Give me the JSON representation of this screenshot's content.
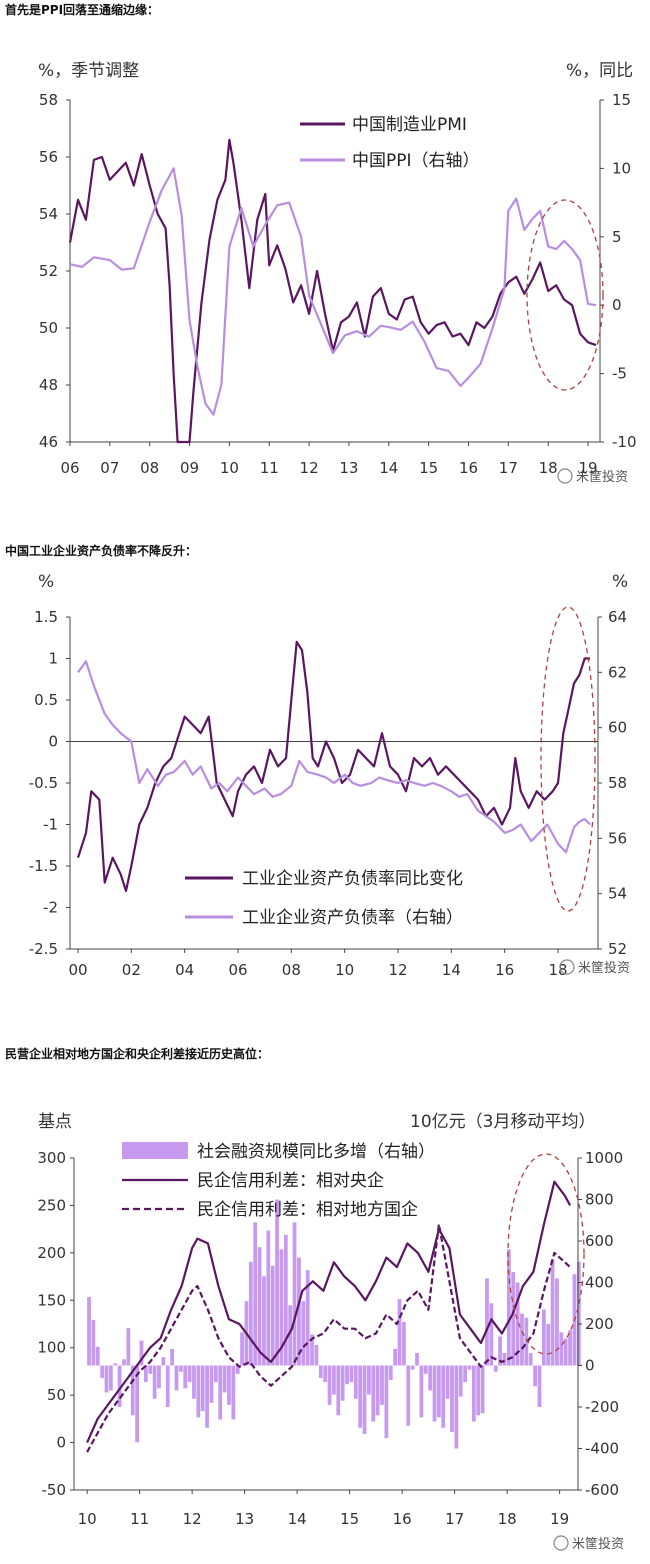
{
  "sections": [
    {
      "heading": "首先是PPI回落至通缩边缘："
    },
    {
      "heading": "中国工业企业资产负债率不降反升："
    },
    {
      "heading": "民营企业相对地方国企和央企利差接近历史高位："
    }
  ],
  "watermark": "米筐投资",
  "colors": {
    "dark": "#5a1660",
    "light": "#b88ee0",
    "bar": "#c79af0",
    "oval": "#b04040"
  },
  "chart_data": [
    {
      "type": "line",
      "left_unit": "%，季节调整",
      "right_unit": "%，同比",
      "x_ticks": [
        "06",
        "07",
        "08",
        "09",
        "10",
        "11",
        "12",
        "13",
        "14",
        "15",
        "16",
        "17",
        "18",
        "19"
      ],
      "y_left": {
        "min": 46,
        "max": 58,
        "ticks": [
          "58",
          "56",
          "54",
          "52",
          "50",
          "48",
          "46"
        ]
      },
      "y_right": {
        "min": -10,
        "max": 15,
        "ticks": [
          "15",
          "10",
          "5",
          "0",
          "-5",
          "-10"
        ]
      },
      "series": [
        {
          "name": "中国制造业PMI",
          "axis": "left",
          "color": "dark",
          "x": [
            2006.0,
            2006.2,
            2006.4,
            2006.6,
            2006.8,
            2007.0,
            2007.2,
            2007.4,
            2007.6,
            2007.8,
            2008.0,
            2008.2,
            2008.4,
            2008.5,
            2008.6,
            2008.7,
            2008.8,
            2008.9,
            2009.0,
            2009.1,
            2009.3,
            2009.5,
            2009.7,
            2009.9,
            2010.0,
            2010.1,
            2010.3,
            2010.5,
            2010.7,
            2010.9,
            2011.0,
            2011.2,
            2011.4,
            2011.6,
            2011.8,
            2012.0,
            2012.2,
            2012.4,
            2012.6,
            2012.8,
            2013.0,
            2013.2,
            2013.4,
            2013.6,
            2013.8,
            2014.0,
            2014.2,
            2014.4,
            2014.6,
            2014.8,
            2015.0,
            2015.2,
            2015.4,
            2015.6,
            2015.8,
            2016.0,
            2016.2,
            2016.4,
            2016.6,
            2016.8,
            2017.0,
            2017.2,
            2017.4,
            2017.6,
            2017.8,
            2018.0,
            2018.2,
            2018.4,
            2018.6,
            2018.8,
            2019.0,
            2019.2
          ],
          "y": [
            53.0,
            54.5,
            53.8,
            55.9,
            56.0,
            55.2,
            55.5,
            55.8,
            55.0,
            56.1,
            55.0,
            54.0,
            53.5,
            51.5,
            48.4,
            46.0,
            45.5,
            44.0,
            43.0,
            47.8,
            50.9,
            53.1,
            54.5,
            55.2,
            56.6,
            55.8,
            53.8,
            51.4,
            53.8,
            54.7,
            52.2,
            52.9,
            52.1,
            50.9,
            51.5,
            50.5,
            52.0,
            50.5,
            49.2,
            50.2,
            50.4,
            50.9,
            49.7,
            51.1,
            51.4,
            50.5,
            50.3,
            51.0,
            51.1,
            50.2,
            49.8,
            50.1,
            50.2,
            49.7,
            49.8,
            49.4,
            50.2,
            50.0,
            50.4,
            51.2,
            51.6,
            51.8,
            51.2,
            51.7,
            52.3,
            51.3,
            51.5,
            51.0,
            50.8,
            49.8,
            49.5,
            49.4
          ]
        },
        {
          "name": "中国PPI（右轴）",
          "axis": "right",
          "color": "light",
          "x": [
            2006.0,
            2006.3,
            2006.6,
            2007.0,
            2007.3,
            2007.6,
            2008.0,
            2008.3,
            2008.6,
            2008.8,
            2009.0,
            2009.2,
            2009.4,
            2009.6,
            2009.8,
            2010.0,
            2010.3,
            2010.6,
            2010.9,
            2011.2,
            2011.5,
            2011.8,
            2012.0,
            2012.3,
            2012.6,
            2012.9,
            2013.2,
            2013.5,
            2013.8,
            2014.0,
            2014.3,
            2014.6,
            2014.9,
            2015.2,
            2015.5,
            2015.8,
            2016.0,
            2016.3,
            2016.6,
            2016.9,
            2017.0,
            2017.2,
            2017.4,
            2017.6,
            2017.8,
            2018.0,
            2018.2,
            2018.4,
            2018.6,
            2018.8,
            2019.0,
            2019.2
          ],
          "y": [
            3.0,
            2.8,
            3.5,
            3.3,
            2.6,
            2.7,
            6.1,
            8.4,
            10.0,
            6.6,
            -1.1,
            -4.5,
            -7.2,
            -8.0,
            -5.8,
            4.3,
            7.1,
            4.3,
            5.9,
            7.3,
            7.5,
            5.0,
            0.7,
            -1.4,
            -3.5,
            -2.2,
            -1.9,
            -2.3,
            -1.5,
            -1.6,
            -1.8,
            -1.2,
            -2.7,
            -4.6,
            -4.8,
            -5.9,
            -5.3,
            -4.3,
            -1.7,
            1.2,
            6.9,
            7.8,
            5.5,
            6.3,
            6.9,
            4.3,
            4.1,
            4.7,
            4.1,
            3.3,
            0.1,
            0.0
          ]
        }
      ]
    },
    {
      "type": "line",
      "left_unit": "%",
      "right_unit": "%",
      "x_ticks": [
        "00",
        "02",
        "04",
        "06",
        "08",
        "10",
        "12",
        "14",
        "16",
        "18"
      ],
      "y_left": {
        "min": -2.5,
        "max": 1.5,
        "ticks": [
          "1.5",
          "1",
          "0.5",
          "0",
          "-0.5",
          "-1",
          "-1.5",
          "-2",
          "-2.5"
        ]
      },
      "y_right": {
        "min": 52,
        "max": 64,
        "ticks": [
          "64",
          "62",
          "60",
          "58",
          "56",
          "54",
          "52"
        ]
      },
      "series": [
        {
          "name": "工业企业资产负债率同比变化",
          "axis": "left",
          "color": "dark",
          "x": [
            2000.0,
            2000.3,
            2000.5,
            2000.8,
            2001.0,
            2001.3,
            2001.6,
            2001.8,
            2002.0,
            2002.3,
            2002.6,
            2002.9,
            2003.2,
            2003.5,
            2003.8,
            2004.0,
            2004.3,
            2004.6,
            2004.9,
            2005.2,
            2005.5,
            2005.8,
            2006.0,
            2006.3,
            2006.6,
            2006.9,
            2007.2,
            2007.5,
            2007.8,
            2008.0,
            2008.2,
            2008.4,
            2008.6,
            2008.8,
            2009.0,
            2009.3,
            2009.6,
            2009.9,
            2010.2,
            2010.5,
            2010.8,
            2011.1,
            2011.4,
            2011.7,
            2012.0,
            2012.3,
            2012.6,
            2012.9,
            2013.2,
            2013.5,
            2013.8,
            2014.1,
            2014.4,
            2014.7,
            2015.0,
            2015.3,
            2015.6,
            2015.9,
            2016.2,
            2016.4,
            2016.6,
            2016.9,
            2017.2,
            2017.5,
            2017.8,
            2018.0,
            2018.2,
            2018.4,
            2018.6,
            2018.8,
            2019.0,
            2019.2
          ],
          "y": [
            -1.4,
            -1.1,
            -0.6,
            -0.7,
            -1.7,
            -1.4,
            -1.6,
            -1.8,
            -1.5,
            -1.0,
            -0.8,
            -0.5,
            -0.3,
            -0.2,
            0.1,
            0.3,
            0.2,
            0.1,
            0.3,
            -0.5,
            -0.7,
            -0.9,
            -0.6,
            -0.4,
            -0.3,
            -0.5,
            -0.1,
            -0.3,
            -0.2,
            0.5,
            1.2,
            1.1,
            0.6,
            -0.2,
            -0.3,
            0.0,
            -0.2,
            -0.5,
            -0.4,
            -0.1,
            -0.2,
            -0.3,
            0.1,
            -0.3,
            -0.4,
            -0.6,
            -0.2,
            -0.3,
            -0.2,
            -0.4,
            -0.3,
            -0.4,
            -0.5,
            -0.6,
            -0.7,
            -0.9,
            -0.8,
            -1.0,
            -0.8,
            -0.2,
            -0.6,
            -0.8,
            -0.6,
            -0.7,
            -0.6,
            -0.5,
            0.1,
            0.4,
            0.7,
            0.8,
            1.0,
            1.0
          ]
        },
        {
          "name": "工业企业资产负债率（右轴）",
          "axis": "right",
          "color": "light",
          "x": [
            2000.0,
            2000.3,
            2000.6,
            2001.0,
            2001.3,
            2001.6,
            2002.0,
            2002.3,
            2002.6,
            2003.0,
            2003.3,
            2003.6,
            2004.0,
            2004.3,
            2004.6,
            2005.0,
            2005.3,
            2005.6,
            2006.0,
            2006.3,
            2006.6,
            2007.0,
            2007.3,
            2007.6,
            2008.0,
            2008.3,
            2008.6,
            2009.0,
            2009.3,
            2009.6,
            2010.0,
            2010.3,
            2010.6,
            2011.0,
            2011.3,
            2011.6,
            2012.0,
            2012.3,
            2012.6,
            2013.0,
            2013.3,
            2013.6,
            2014.0,
            2014.3,
            2014.6,
            2015.0,
            2015.3,
            2015.6,
            2016.0,
            2016.3,
            2016.6,
            2017.0,
            2017.3,
            2017.6,
            2018.0,
            2018.3,
            2018.6,
            2018.8,
            2019.0,
            2019.2
          ],
          "y": [
            62.0,
            62.4,
            61.5,
            60.5,
            60.1,
            59.8,
            59.5,
            58.0,
            58.5,
            57.9,
            58.3,
            58.4,
            58.8,
            58.3,
            58.6,
            57.8,
            58.0,
            57.7,
            58.2,
            57.9,
            57.6,
            57.8,
            57.5,
            57.6,
            57.9,
            58.8,
            58.4,
            58.3,
            58.2,
            58.0,
            58.3,
            58.0,
            57.9,
            58.0,
            58.2,
            58.1,
            58.0,
            58.1,
            58.0,
            57.9,
            58.0,
            57.9,
            57.7,
            57.5,
            57.6,
            57.0,
            56.8,
            56.6,
            56.2,
            56.3,
            56.5,
            55.9,
            56.2,
            56.5,
            55.8,
            55.5,
            56.4,
            56.6,
            56.7,
            56.5
          ]
        }
      ]
    },
    {
      "type": "bar+line",
      "left_unit": "基点",
      "right_unit": "10亿元（3月移动平均）",
      "x_ticks": [
        "10",
        "11",
        "12",
        "13",
        "14",
        "15",
        "16",
        "17",
        "18",
        "19"
      ],
      "y_left": {
        "min": -50,
        "max": 300,
        "ticks": [
          "300",
          "250",
          "200",
          "150",
          "100",
          "50",
          "0",
          "-50"
        ]
      },
      "y_right": {
        "min": -600,
        "max": 1000,
        "ticks": [
          "1000",
          "800",
          "600",
          "400",
          "200",
          "0",
          "-200",
          "-400",
          "-600"
        ]
      },
      "bars": {
        "name": "社会融资规模同比多增（右轴）",
        "axis": "right",
        "color": "bar",
        "x_start": 2010.0,
        "step": 0.0833,
        "values": [
          330,
          220,
          90,
          -60,
          -130,
          -120,
          10,
          -200,
          30,
          180,
          -240,
          -370,
          120,
          -80,
          -40,
          -160,
          -110,
          40,
          -200,
          80,
          -120,
          -30,
          -110,
          -80,
          -160,
          -250,
          -220,
          -300,
          -180,
          -80,
          -260,
          -130,
          -190,
          -260,
          -40,
          160,
          310,
          500,
          690,
          570,
          430,
          650,
          480,
          800,
          560,
          630,
          290,
          690,
          520,
          310,
          460,
          150,
          100,
          -60,
          -80,
          -190,
          -140,
          -240,
          -170,
          -90,
          -80,
          -160,
          -300,
          -330,
          -140,
          -270,
          -240,
          -190,
          -350,
          -70,
          80,
          320,
          210,
          -290,
          -20,
          60,
          -250,
          -40,
          -120,
          -270,
          -250,
          -300,
          -160,
          -320,
          -400,
          -150,
          -80,
          -20,
          -270,
          -240,
          -230,
          420,
          300,
          -30,
          140,
          60,
          560,
          450,
          400,
          250,
          230,
          60,
          -100,
          -200,
          270,
          200,
          510,
          420,
          160,
          130,
          170,
          440,
          500,
          170,
          630,
          560,
          470,
          270,
          -40,
          80,
          -230,
          -150,
          -280,
          -350,
          -180,
          -280,
          -100,
          -230,
          -310,
          -170,
          -230,
          -160,
          -220,
          -380,
          -210,
          -290,
          -160,
          -120,
          -260,
          -330,
          -330,
          -80,
          150,
          280,
          110,
          400,
          380,
          320,
          240,
          100,
          230,
          270,
          410,
          460,
          390,
          300,
          130,
          -120,
          -180,
          -290,
          -170,
          -270,
          -310,
          -260,
          -200,
          -330,
          -380,
          -300,
          -170,
          -280,
          -310,
          -200,
          -170,
          -260,
          -250,
          -280,
          -140,
          -190,
          -170,
          -130,
          -270,
          -290,
          -170,
          -140,
          180,
          350,
          440,
          430
        ]
      },
      "series": [
        {
          "name": "民企信用利差：相对央企",
          "axis": "left",
          "color": "dark",
          "dash": false,
          "x": [
            2010.0,
            2010.2,
            2010.4,
            2010.6,
            2010.8,
            2011.0,
            2011.2,
            2011.4,
            2011.6,
            2011.8,
            2012.0,
            2012.1,
            2012.3,
            2012.5,
            2012.7,
            2012.9,
            2013.1,
            2013.3,
            2013.5,
            2013.7,
            2013.9,
            2014.1,
            2014.3,
            2014.5,
            2014.7,
            2014.9,
            2015.1,
            2015.3,
            2015.5,
            2015.7,
            2015.9,
            2016.1,
            2016.3,
            2016.5,
            2016.7,
            2016.9,
            2017.1,
            2017.3,
            2017.5,
            2017.7,
            2017.9,
            2018.1,
            2018.3,
            2018.5,
            2018.7,
            2018.9,
            2019.1,
            2019.2
          ],
          "y": [
            0,
            25,
            40,
            55,
            70,
            85,
            100,
            110,
            140,
            165,
            205,
            215,
            210,
            165,
            130,
            125,
            110,
            95,
            85,
            100,
            120,
            160,
            170,
            160,
            190,
            175,
            165,
            150,
            170,
            195,
            185,
            210,
            200,
            180,
            225,
            205,
            135,
            120,
            105,
            130,
            115,
            135,
            165,
            180,
            230,
            275,
            260,
            250
          ]
        },
        {
          "name": "民企信用利差：相对地方国企",
          "axis": "left",
          "color": "dark",
          "dash": true,
          "x": [
            2010.0,
            2010.2,
            2010.4,
            2010.6,
            2010.8,
            2011.0,
            2011.2,
            2011.4,
            2011.6,
            2011.8,
            2012.0,
            2012.1,
            2012.3,
            2012.5,
            2012.7,
            2012.9,
            2013.1,
            2013.3,
            2013.5,
            2013.7,
            2013.9,
            2014.1,
            2014.3,
            2014.5,
            2014.7,
            2014.9,
            2015.1,
            2015.3,
            2015.5,
            2015.7,
            2015.9,
            2016.1,
            2016.3,
            2016.5,
            2016.7,
            2016.9,
            2017.1,
            2017.3,
            2017.5,
            2017.7,
            2017.9,
            2018.1,
            2018.3,
            2018.5,
            2018.7,
            2018.9,
            2019.1,
            2019.2
          ],
          "y": [
            -10,
            10,
            30,
            45,
            60,
            75,
            85,
            100,
            120,
            140,
            160,
            165,
            140,
            110,
            90,
            80,
            85,
            70,
            60,
            70,
            80,
            100,
            110,
            115,
            130,
            120,
            120,
            110,
            115,
            135,
            125,
            150,
            160,
            140,
            230,
            170,
            110,
            95,
            80,
            90,
            85,
            90,
            100,
            115,
            160,
            200,
            190,
            185
          ]
        }
      ]
    }
  ]
}
